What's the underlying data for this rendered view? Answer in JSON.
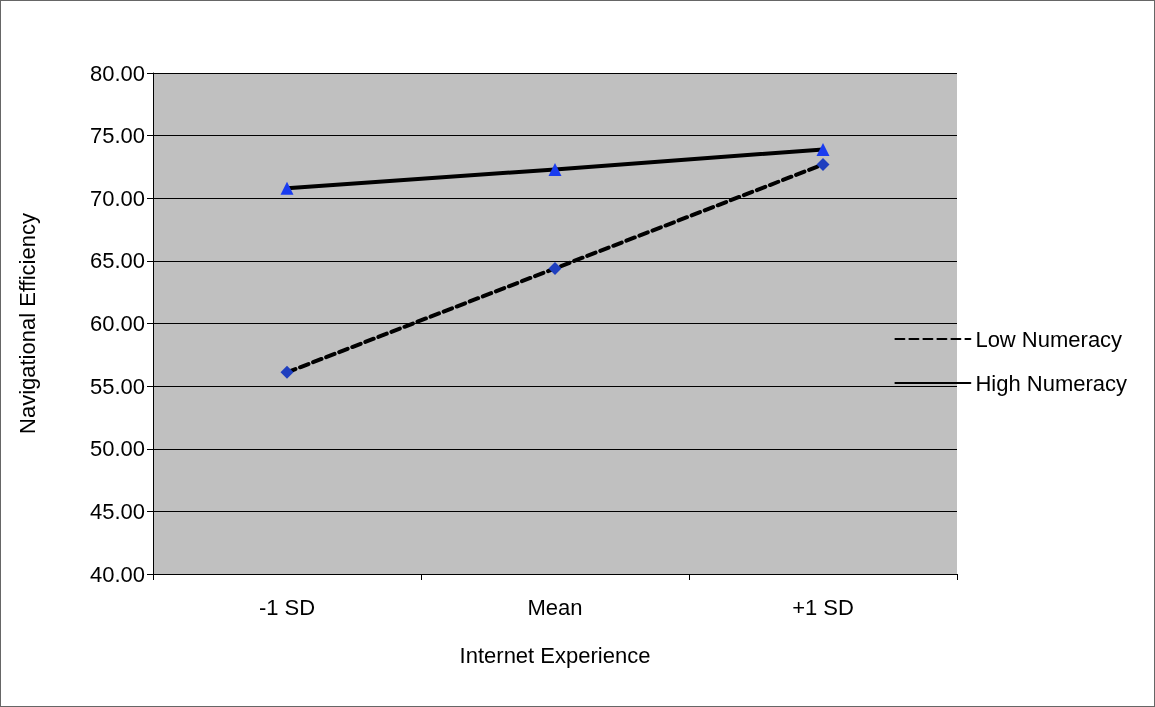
{
  "chart_data": {
    "type": "line",
    "xlabel": "Internet Experience",
    "ylabel": "Navigational Efficiency",
    "categories": [
      "-1 SD",
      "Mean",
      "+1 SD"
    ],
    "series": [
      {
        "name": "Low Numeracy",
        "color": "#000000",
        "colors": [
          "#1f3fbf",
          "#1f3fbf",
          "#1f3fbf"
        ],
        "values": [
          56.1,
          64.4,
          72.7
        ],
        "marker": "diamond",
        "line_style": "dashed"
      },
      {
        "name": "High Numeracy",
        "color": "#000000",
        "colors": [
          "#1a3cf0",
          "#1a3cf0",
          "#1a3cf0"
        ],
        "values": [
          70.8,
          72.3,
          73.9
        ],
        "marker": "triangle",
        "line_style": "solid"
      }
    ],
    "ylim": [
      40,
      80
    ],
    "yticks": [
      {
        "value": 40,
        "label": "40.00"
      },
      {
        "value": 45,
        "label": "45.00"
      },
      {
        "value": 50,
        "label": "50.00"
      },
      {
        "value": 55,
        "label": "55.00"
      },
      {
        "value": 60,
        "label": "60.00"
      },
      {
        "value": 65,
        "label": "65.00"
      },
      {
        "value": 70,
        "label": "70.00"
      },
      {
        "value": 75,
        "label": "75.00"
      },
      {
        "value": 80,
        "label": "80.00"
      }
    ],
    "grid": "y",
    "legend": "right"
  }
}
